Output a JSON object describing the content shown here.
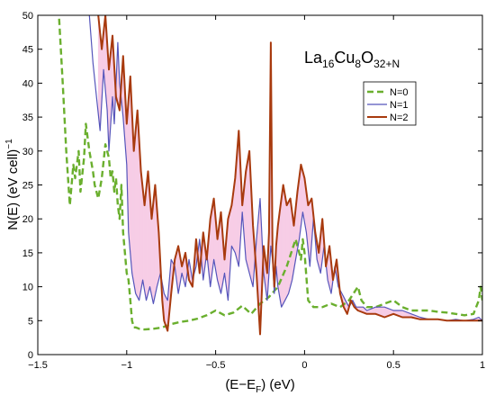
{
  "chart_data": {
    "type": "line",
    "title": "",
    "xlabel": "(E−E_F) (eV)",
    "ylabel": "N(E) (eV cell)^−1",
    "xlim": [
      -1.5,
      1.0
    ],
    "ylim": [
      0,
      50
    ],
    "grid": false,
    "legend_position": "top-right",
    "annotation": {
      "parts": [
        [
          "La",
          "base"
        ],
        [
          "16",
          "sub"
        ],
        [
          "Cu",
          "base"
        ],
        [
          "8",
          "sub"
        ],
        [
          "O",
          "base"
        ],
        [
          "32+N",
          "sub"
        ]
      ]
    },
    "x_ticks": [
      -1.5,
      -1,
      -0.5,
      0,
      0.5,
      1
    ],
    "x_tick_labels": [
      "−1.5",
      "−1",
      "−0.5",
      "0",
      "0.5",
      "1"
    ],
    "y_ticks": [
      0,
      5,
      10,
      15,
      20,
      25,
      30,
      35,
      40,
      45,
      50
    ],
    "y_tick_labels": [
      "0",
      "5",
      "10",
      "15",
      "20",
      "25",
      "30",
      "35",
      "40",
      "45",
      "50"
    ],
    "series": [
      {
        "name": "N=0",
        "color": "#6aaf2e",
        "dash": "7,4",
        "width": 2.4,
        "x": [
          -1.38,
          -1.36,
          -1.34,
          -1.32,
          -1.3,
          -1.29,
          -1.27,
          -1.26,
          -1.24,
          -1.23,
          -1.21,
          -1.19,
          -1.18,
          -1.16,
          -1.14,
          -1.12,
          -1.1,
          -1.09,
          -1.08,
          -1.07,
          -1.06,
          -1.05,
          -1.04,
          -1.03,
          -1.02,
          -1.0,
          -0.99,
          -0.98,
          -0.97,
          -0.96,
          -0.95,
          -0.93,
          -0.9,
          -0.85,
          -0.8,
          -0.75,
          -0.7,
          -0.65,
          -0.6,
          -0.55,
          -0.5,
          -0.45,
          -0.4,
          -0.35,
          -0.3,
          -0.25,
          -0.2,
          -0.15,
          -0.1,
          -0.05,
          -0.03,
          -0.02,
          -0.01,
          0.0,
          0.02,
          0.05,
          0.1,
          0.15,
          0.2,
          0.25,
          0.3,
          0.32,
          0.35,
          0.4,
          0.45,
          0.5,
          0.55,
          0.6,
          0.65,
          0.7,
          0.75,
          0.8,
          0.85,
          0.9,
          0.95,
          0.98,
          0.99,
          1.0
        ],
        "y": [
          49.5,
          40,
          30,
          22,
          28,
          26,
          30,
          24,
          29,
          34,
          30,
          27,
          25,
          23,
          26,
          31,
          29,
          26,
          27,
          24,
          26,
          22,
          20,
          25,
          18,
          12,
          11,
          8,
          5,
          4,
          4,
          3.8,
          3.7,
          3.8,
          4,
          4.5,
          4.8,
          5,
          5.3,
          5.8,
          6.5,
          5.8,
          6.2,
          7.2,
          6,
          7.5,
          8.5,
          10,
          13,
          17,
          15,
          14,
          17,
          15,
          8,
          7,
          7,
          7.5,
          7,
          8,
          10,
          8,
          7,
          7,
          7.5,
          8,
          7,
          6.5,
          6.5,
          6.5,
          6.3,
          6.2,
          6,
          5.8,
          6,
          8,
          10,
          8
        ]
      },
      {
        "name": "N=1",
        "color": "#5555bb",
        "dash": "",
        "width": 1.2,
        "x": [
          -1.21,
          -1.19,
          -1.17,
          -1.15,
          -1.13,
          -1.11,
          -1.1,
          -1.08,
          -1.07,
          -1.05,
          -1.04,
          -1.02,
          -1.0,
          -0.99,
          -0.97,
          -0.95,
          -0.93,
          -0.91,
          -0.89,
          -0.87,
          -0.85,
          -0.83,
          -0.81,
          -0.79,
          -0.77,
          -0.75,
          -0.73,
          -0.71,
          -0.69,
          -0.67,
          -0.65,
          -0.63,
          -0.61,
          -0.59,
          -0.57,
          -0.55,
          -0.53,
          -0.51,
          -0.49,
          -0.47,
          -0.45,
          -0.43,
          -0.41,
          -0.39,
          -0.37,
          -0.35,
          -0.33,
          -0.31,
          -0.29,
          -0.27,
          -0.25,
          -0.23,
          -0.21,
          -0.19,
          -0.18,
          -0.17,
          -0.16,
          -0.15,
          -0.13,
          -0.11,
          -0.09,
          -0.07,
          -0.05,
          -0.03,
          -0.01,
          0.01,
          0.03,
          0.05,
          0.07,
          0.09,
          0.11,
          0.13,
          0.15,
          0.17,
          0.19,
          0.21,
          0.23,
          0.25,
          0.27,
          0.29,
          0.31,
          0.33,
          0.35,
          0.4,
          0.45,
          0.5,
          0.55,
          0.6,
          0.65,
          0.7,
          0.75,
          0.8,
          0.85,
          0.9,
          0.95,
          0.98,
          1.0
        ],
        "y": [
          50,
          43,
          38,
          33,
          42,
          36,
          30,
          38,
          34,
          46,
          40,
          35,
          28,
          18,
          12,
          9,
          8,
          11,
          8,
          10,
          7.5,
          10,
          12,
          9,
          8,
          14,
          13,
          9,
          12,
          10,
          14,
          11,
          13,
          17,
          11,
          15,
          10,
          14,
          11,
          9,
          12,
          8,
          16,
          15,
          13,
          21,
          14,
          12,
          10,
          17,
          23,
          12,
          8,
          16,
          14,
          9,
          13,
          10,
          7,
          8,
          9,
          11,
          14,
          17,
          21,
          18,
          13,
          20,
          14,
          12,
          16,
          11,
          9,
          13,
          10,
          9,
          8,
          7,
          8,
          7,
          7,
          7,
          6.5,
          7,
          7,
          6.5,
          6.5,
          6,
          5.5,
          5.2,
          5.2,
          5,
          5.2,
          5,
          5.2,
          5.5,
          5
        ]
      },
      {
        "name": "N=2",
        "color": "#a83a0e",
        "dash": "",
        "width": 2.0,
        "x": [
          -1.16,
          -1.14,
          -1.12,
          -1.1,
          -1.08,
          -1.06,
          -1.04,
          -1.02,
          -1.0,
          -0.98,
          -0.96,
          -0.94,
          -0.92,
          -0.9,
          -0.88,
          -0.86,
          -0.84,
          -0.82,
          -0.8,
          -0.79,
          -0.77,
          -0.75,
          -0.73,
          -0.71,
          -0.69,
          -0.67,
          -0.65,
          -0.63,
          -0.61,
          -0.59,
          -0.57,
          -0.55,
          -0.53,
          -0.51,
          -0.49,
          -0.47,
          -0.45,
          -0.43,
          -0.41,
          -0.39,
          -0.37,
          -0.35,
          -0.33,
          -0.31,
          -0.29,
          -0.27,
          -0.25,
          -0.23,
          -0.21,
          -0.2,
          -0.19,
          -0.18,
          -0.17,
          -0.16,
          -0.15,
          -0.14,
          -0.12,
          -0.1,
          -0.08,
          -0.06,
          -0.04,
          -0.02,
          0.0,
          0.02,
          0.04,
          0.06,
          0.08,
          0.1,
          0.12,
          0.14,
          0.16,
          0.18,
          0.2,
          0.22,
          0.24,
          0.26,
          0.28,
          0.3,
          0.35,
          0.4,
          0.45,
          0.5,
          0.55,
          0.6,
          0.65,
          0.7,
          0.75,
          0.8,
          0.85,
          0.9,
          0.95,
          1.0
        ],
        "y": [
          50,
          45,
          50,
          42,
          47,
          38,
          36,
          44,
          34,
          41,
          30,
          36,
          27,
          22,
          27,
          20,
          25,
          18,
          8,
          5,
          3.5,
          9,
          14,
          16,
          13,
          15,
          11,
          10,
          17,
          12,
          18,
          14,
          20,
          23,
          17,
          21,
          14,
          20,
          22,
          26,
          33,
          22,
          27,
          30,
          19,
          12,
          3,
          16,
          12,
          18,
          46,
          15,
          10,
          16,
          19,
          21,
          25,
          22,
          23,
          19,
          24,
          28,
          26,
          22,
          23,
          18,
          15,
          20,
          13,
          16,
          11,
          14,
          9,
          7,
          6,
          8,
          7,
          6.5,
          6,
          6,
          5.5,
          6,
          5.5,
          5.5,
          5.2,
          5.2,
          5.2,
          5,
          5,
          5,
          5,
          5
        ]
      }
    ]
  }
}
